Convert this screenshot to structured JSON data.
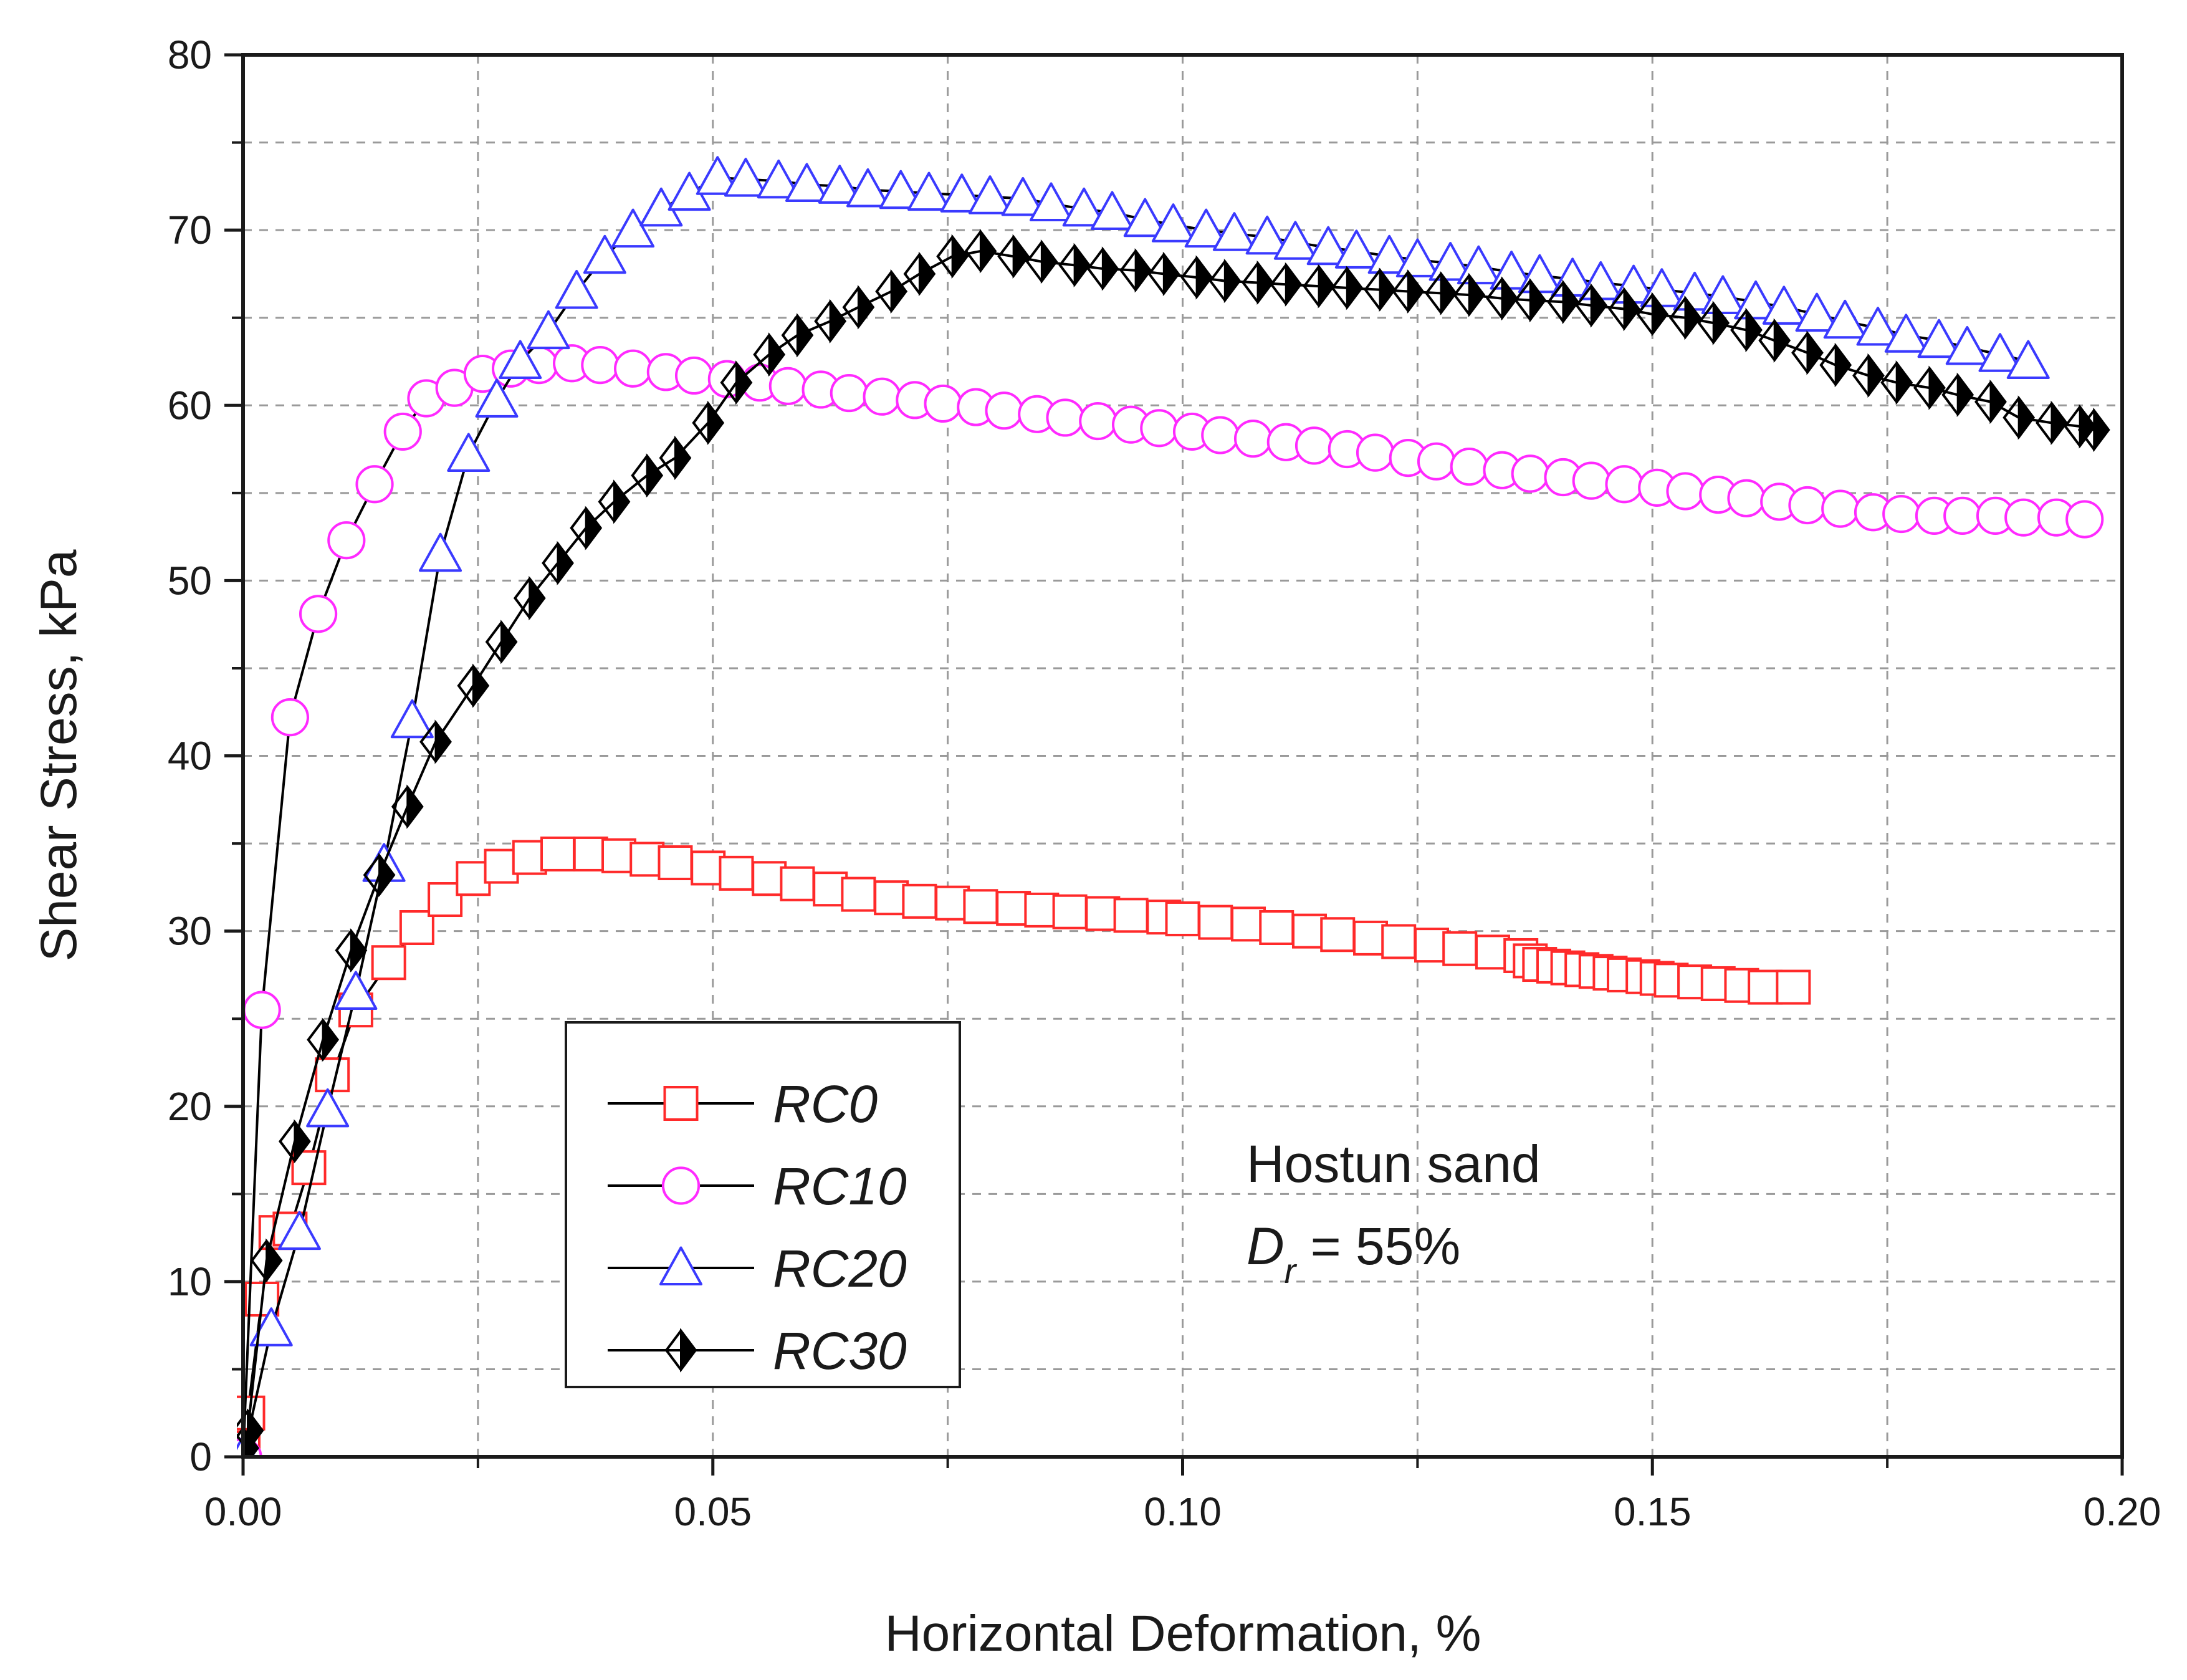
{
  "chart_data": {
    "type": "scatter",
    "title": "",
    "xlabel": "Horizontal Deformation, %",
    "ylabel": "Shear Stress, kPa",
    "xlim": [
      0,
      0.2
    ],
    "ylim": [
      0,
      80
    ],
    "xticks": [
      0,
      0.05,
      0.1,
      0.15,
      0.2
    ],
    "xtick_labels": [
      "0.00",
      "0.05",
      "0.10",
      "0.15",
      "0.20"
    ],
    "yticks": [
      0,
      10,
      20,
      30,
      40,
      50,
      60,
      70,
      80
    ],
    "ytick_labels": [
      "0",
      "10",
      "20",
      "30",
      "40",
      "50",
      "60",
      "70",
      "80"
    ],
    "grid": true,
    "legend_position": "bottom-left",
    "annotation": {
      "line1": "Hostun sand",
      "dr_symbol": "D",
      "dr_subscript": "r",
      "dr_value": " = 55%"
    },
    "series": [
      {
        "name": "RC0",
        "marker": "square",
        "color": "#ff2a2a",
        "x": [
          0,
          0.0005,
          0.002,
          0.0035,
          0.005,
          0.007,
          0.0095,
          0.012,
          0.0155,
          0.0185,
          0.0215,
          0.0245,
          0.0275,
          0.0305,
          0.0335,
          0.037,
          0.04,
          0.043,
          0.046,
          0.0495,
          0.0525,
          0.056,
          0.059,
          0.0625,
          0.0655,
          0.069,
          0.072,
          0.0755,
          0.0785,
          0.082,
          0.085,
          0.088,
          0.0915,
          0.0945,
          0.098,
          0.1,
          0.1035,
          0.107,
          0.11,
          0.1135,
          0.1165,
          0.12,
          0.123,
          0.1265,
          0.1295,
          0.133,
          0.136,
          0.137,
          0.138,
          0.1395,
          0.141,
          0.1425,
          0.144,
          0.1455,
          0.147,
          0.149,
          0.1505,
          0.152,
          0.1545,
          0.157,
          0.1595,
          0.162,
          0.165
        ],
        "y": [
          0.5,
          2.5,
          9.0,
          12.8,
          13.0,
          16.5,
          21.8,
          25.5,
          28.2,
          30.2,
          31.8,
          33.0,
          33.7,
          34.2,
          34.4,
          34.4,
          34.3,
          34.1,
          33.9,
          33.6,
          33.3,
          33.0,
          32.7,
          32.4,
          32.1,
          31.9,
          31.7,
          31.6,
          31.4,
          31.3,
          31.2,
          31.1,
          31.0,
          30.9,
          30.8,
          30.7,
          30.5,
          30.4,
          30.2,
          30.0,
          29.8,
          29.6,
          29.4,
          29.2,
          29.0,
          28.8,
          28.6,
          28.3,
          28.1,
          28.0,
          27.9,
          27.8,
          27.7,
          27.6,
          27.5,
          27.4,
          27.3,
          27.2,
          27.1,
          27.0,
          26.9,
          26.8,
          26.8
        ]
      },
      {
        "name": "RC10",
        "marker": "circle",
        "color": "#ff2aff",
        "x": [
          0,
          0.002,
          0.005,
          0.008,
          0.011,
          0.014,
          0.017,
          0.0195,
          0.0225,
          0.0255,
          0.0285,
          0.0315,
          0.035,
          0.038,
          0.0415,
          0.045,
          0.048,
          0.0515,
          0.055,
          0.058,
          0.0615,
          0.0645,
          0.068,
          0.0715,
          0.0745,
          0.078,
          0.081,
          0.0845,
          0.0875,
          0.091,
          0.0945,
          0.0975,
          0.101,
          0.104,
          0.1075,
          0.111,
          0.114,
          0.1175,
          0.1205,
          0.124,
          0.127,
          0.1305,
          0.134,
          0.137,
          0.1405,
          0.1435,
          0.147,
          0.1505,
          0.1535,
          0.157,
          0.16,
          0.1635,
          0.1665,
          0.17,
          0.1735,
          0.1765,
          0.18,
          0.183,
          0.1865,
          0.1895,
          0.193,
          0.196
        ],
        "y": [
          0,
          25.5,
          42.2,
          48.1,
          52.3,
          55.5,
          58.5,
          60.4,
          61.0,
          61.8,
          62.1,
          62.3,
          62.4,
          62.3,
          62.1,
          61.9,
          61.7,
          61.5,
          61.3,
          61.1,
          60.9,
          60.7,
          60.5,
          60.3,
          60.1,
          59.9,
          59.7,
          59.5,
          59.3,
          59.1,
          58.9,
          58.7,
          58.5,
          58.3,
          58.1,
          57.9,
          57.7,
          57.5,
          57.3,
          57.0,
          56.8,
          56.5,
          56.3,
          56.1,
          55.9,
          55.7,
          55.5,
          55.3,
          55.1,
          54.9,
          54.7,
          54.5,
          54.3,
          54.1,
          53.9,
          53.8,
          53.7,
          53.7,
          53.7,
          53.6,
          53.6,
          53.5
        ]
      },
      {
        "name": "RC20",
        "marker": "triangle",
        "color": "#3a3aff",
        "x": [
          0,
          0.003,
          0.006,
          0.009,
          0.012,
          0.015,
          0.018,
          0.021,
          0.024,
          0.027,
          0.0295,
          0.0325,
          0.0355,
          0.0385,
          0.0415,
          0.0445,
          0.0475,
          0.0505,
          0.0535,
          0.057,
          0.06,
          0.0635,
          0.0665,
          0.07,
          0.073,
          0.0765,
          0.0795,
          0.083,
          0.086,
          0.0895,
          0.0925,
          0.096,
          0.099,
          0.1025,
          0.1055,
          0.109,
          0.112,
          0.1155,
          0.1185,
          0.122,
          0.125,
          0.1285,
          0.1315,
          0.135,
          0.138,
          0.1415,
          0.1445,
          0.148,
          0.151,
          0.1545,
          0.1575,
          0.161,
          0.164,
          0.1675,
          0.1705,
          0.174,
          0.177,
          0.1805,
          0.1835,
          0.187,
          0.19
        ],
        "y": [
          0,
          7.3,
          12.8,
          19.8,
          26.5,
          33.8,
          42.0,
          51.5,
          57.2,
          60.3,
          62.5,
          64.2,
          66.5,
          68.5,
          70.0,
          71.2,
          72.1,
          73.0,
          72.9,
          72.8,
          72.6,
          72.5,
          72.3,
          72.2,
          72.1,
          72.0,
          71.9,
          71.8,
          71.5,
          71.2,
          71.0,
          70.6,
          70.3,
          70.0,
          69.8,
          69.6,
          69.3,
          69.0,
          68.8,
          68.5,
          68.3,
          68.1,
          67.9,
          67.6,
          67.4,
          67.2,
          67.0,
          66.8,
          66.6,
          66.4,
          66.2,
          65.9,
          65.6,
          65.2,
          64.8,
          64.4,
          64.0,
          63.7,
          63.3,
          62.9,
          62.5
        ]
      },
      {
        "name": "RC30",
        "marker": "diamond-half",
        "color": "#000000",
        "x": [
          0,
          0.0005,
          0.0025,
          0.0055,
          0.0085,
          0.0115,
          0.0145,
          0.0175,
          0.0205,
          0.0245,
          0.0275,
          0.0305,
          0.0335,
          0.0365,
          0.0395,
          0.043,
          0.046,
          0.0495,
          0.0525,
          0.056,
          0.059,
          0.0625,
          0.0655,
          0.069,
          0.072,
          0.0755,
          0.0785,
          0.082,
          0.085,
          0.0885,
          0.0915,
          0.095,
          0.098,
          0.1015,
          0.1045,
          0.108,
          0.111,
          0.1145,
          0.1175,
          0.121,
          0.124,
          0.1275,
          0.1305,
          0.134,
          0.137,
          0.1405,
          0.1435,
          0.147,
          0.15,
          0.1535,
          0.1565,
          0.16,
          0.163,
          0.1665,
          0.1695,
          0.173,
          0.176,
          0.1795,
          0.1825,
          0.186,
          0.189,
          0.1925,
          0.1955,
          0.197
        ],
        "y": [
          0.5,
          1.5,
          11.2,
          18.0,
          23.8,
          28.9,
          33.2,
          37.1,
          40.8,
          44.0,
          46.5,
          49.0,
          51.0,
          53.0,
          54.5,
          56.0,
          57.0,
          59.0,
          61.3,
          62.9,
          64.0,
          64.8,
          65.6,
          66.5,
          67.5,
          68.5,
          68.8,
          68.5,
          68.2,
          68.0,
          67.8,
          67.7,
          67.5,
          67.3,
          67.1,
          67.0,
          66.9,
          66.8,
          66.7,
          66.6,
          66.5,
          66.4,
          66.3,
          66.1,
          66.0,
          65.9,
          65.7,
          65.5,
          65.2,
          65.0,
          64.7,
          64.3,
          63.7,
          63.0,
          62.3,
          61.7,
          61.3,
          61.0,
          60.6,
          60.2,
          59.3,
          59.0,
          58.8,
          58.6
        ]
      }
    ]
  }
}
